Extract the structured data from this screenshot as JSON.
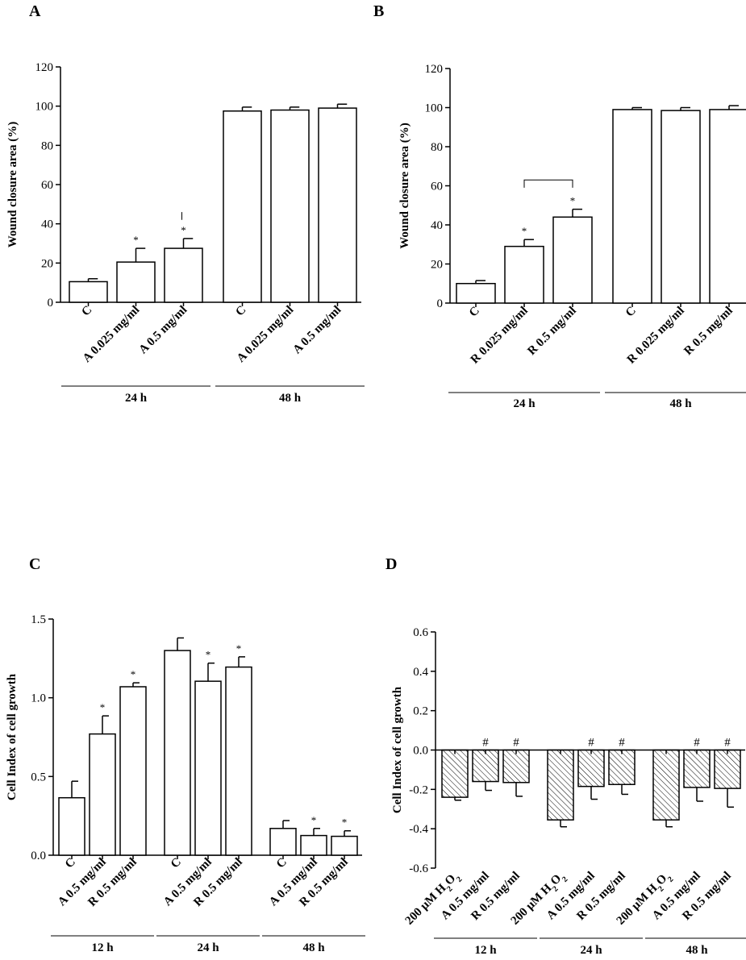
{
  "panels": {
    "A": {
      "letter": "A"
    },
    "B": {
      "letter": "B"
    },
    "C": {
      "letter": "C"
    },
    "D": {
      "letter": "D"
    }
  },
  "chart_data": [
    {
      "id": "A",
      "type": "bar",
      "ylabel": "Wound closure area (%)",
      "ylim": [
        0,
        120
      ],
      "yticks": [
        "0",
        "20",
        "40",
        "60",
        "80",
        "100",
        "120"
      ],
      "categories": [
        "C",
        "A 0.025 mg/ml",
        "A 0.5 mg/ml",
        "C",
        "A 0.025 mg/ml",
        "A 0.5 mg/ml"
      ],
      "values": [
        10.5,
        20.5,
        27.5,
        97.5,
        98,
        99
      ],
      "errors": [
        1.5,
        7,
        5,
        2,
        1.5,
        2
      ],
      "annotations": [
        "",
        "*",
        "*",
        "",
        "",
        ""
      ],
      "groups": [
        {
          "label": "24 h",
          "from": 0,
          "to": 2
        },
        {
          "label": "48 h",
          "from": 3,
          "to": 5
        }
      ],
      "grid": false
    },
    {
      "id": "B",
      "type": "bar",
      "ylabel": "Wound closure area (%)",
      "ylim": [
        0,
        120
      ],
      "yticks": [
        "0",
        "20",
        "40",
        "60",
        "80",
        "100",
        "120"
      ],
      "categories": [
        "C",
        "R 0.025 mg/ml",
        "R 0.5 mg/ml",
        "C",
        "R 0.025 mg/ml",
        "R 0.5 mg/ml"
      ],
      "values": [
        10,
        29,
        44,
        99,
        98.5,
        99
      ],
      "errors": [
        1.5,
        3.5,
        4,
        1,
        1.5,
        2
      ],
      "annotations": [
        "",
        "*",
        "*",
        "",
        "",
        ""
      ],
      "groups": [
        {
          "label": "24 h",
          "from": 0,
          "to": 2
        },
        {
          "label": "48 h",
          "from": 3,
          "to": 5
        }
      ],
      "grid": false
    },
    {
      "id": "C",
      "type": "bar",
      "ylabel": "Cell Index of cell growth",
      "ylim": [
        0,
        1.5
      ],
      "yticks": [
        "0.0",
        "0.5",
        "1.0",
        "1.5"
      ],
      "categories": [
        "C",
        "A 0.5 mg/ml",
        "R 0.5 mg/ml",
        "C",
        "A 0.5 mg/ml",
        "R 0.5 mg/ml",
        "C",
        "A 0.5 mg/ml",
        "R 0.5 mg/ml"
      ],
      "values": [
        0.365,
        0.77,
        1.07,
        1.3,
        1.105,
        1.195,
        0.17,
        0.125,
        0.12
      ],
      "errors": [
        0.105,
        0.115,
        0.025,
        0.08,
        0.115,
        0.065,
        0.05,
        0.045,
        0.035
      ],
      "annotations": [
        "",
        "*",
        "*",
        "",
        "*",
        "*",
        "",
        "*",
        "*"
      ],
      "groups": [
        {
          "label": "12 h",
          "from": 0,
          "to": 2
        },
        {
          "label": "24 h",
          "from": 3,
          "to": 5
        },
        {
          "label": "48 h",
          "from": 6,
          "to": 8
        }
      ],
      "grid": false
    },
    {
      "id": "D",
      "type": "bar",
      "ylabel": "Cell Index of cell growth",
      "ylim": [
        -0.6,
        0.6
      ],
      "yticks": [
        "-0.6",
        "-0.4",
        "-0.2",
        "0.0",
        "0.2",
        "0.4",
        "0.6"
      ],
      "categories": [
        "200 μM H₂O₂",
        "A 0.5 mg/ml",
        "R 0.5 mg/ml",
        "200 μM H₂O₂",
        "A 0.5 mg/ml",
        "R 0.5 mg/ml",
        "200 μM H₂O₂",
        "A 0.5 mg/ml",
        "R 0.5 mg/ml"
      ],
      "values": [
        -0.24,
        -0.16,
        -0.165,
        -0.355,
        -0.185,
        -0.175,
        -0.355,
        -0.19,
        -0.195
      ],
      "errors": [
        0.015,
        0.045,
        0.07,
        0.035,
        0.065,
        0.05,
        0.035,
        0.07,
        0.095
      ],
      "annotations": [
        "",
        "#",
        "#",
        "",
        "#",
        "#",
        "",
        "#",
        "#"
      ],
      "hatched": true,
      "groups": [
        {
          "label": "12 h",
          "from": 0,
          "to": 2
        },
        {
          "label": "24 h",
          "from": 3,
          "to": 5
        },
        {
          "label": "48 h",
          "from": 6,
          "to": 8
        }
      ],
      "grid": false
    }
  ]
}
